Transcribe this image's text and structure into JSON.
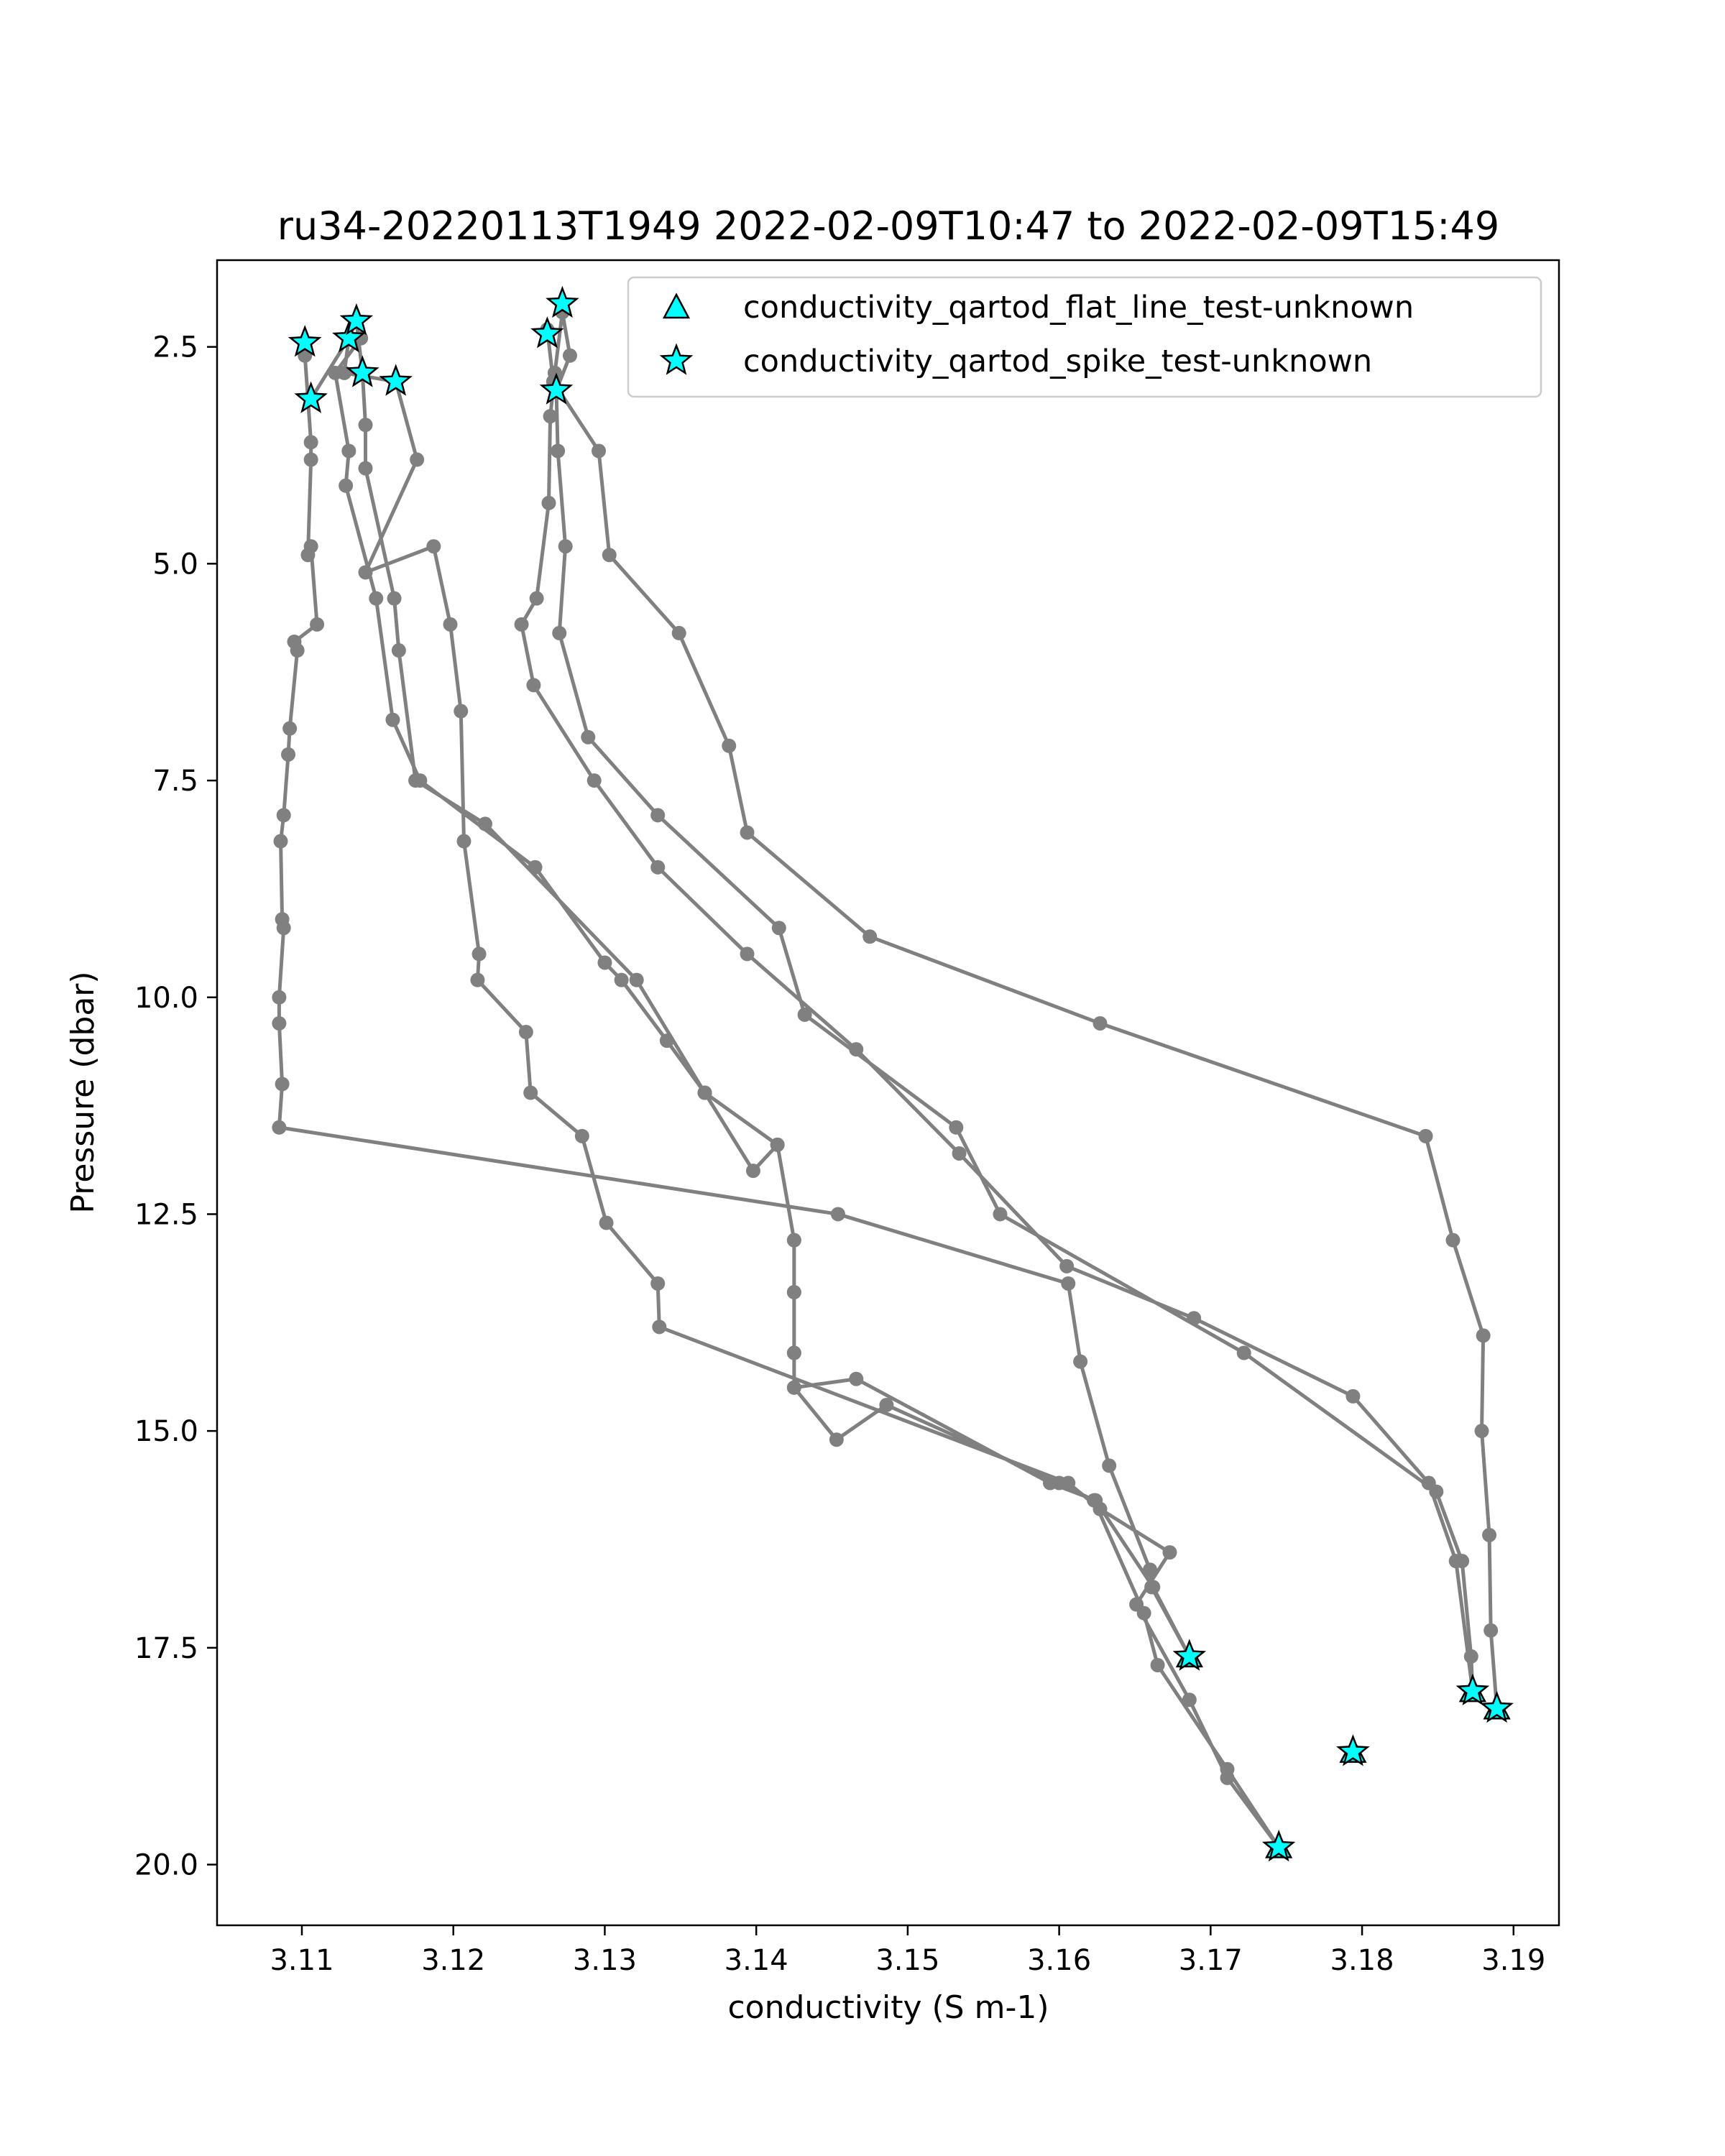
{
  "chart_data": {
    "type": "line",
    "title": "ru34-20220113T1949 2022-02-09T10:47 to 2022-02-09T15:49",
    "xlabel": "conductivity (S m-1)",
    "ylabel": "Pressure (dbar)",
    "xlim": [
      3.1044,
      3.193
    ],
    "ylim": [
      20.7,
      1.5
    ],
    "y_inverted": true,
    "x_ticks": [
      3.11,
      3.12,
      3.13,
      3.14,
      3.15,
      3.16,
      3.17,
      3.18,
      3.19
    ],
    "x_tick_labels": [
      "3.11",
      "3.12",
      "3.13",
      "3.14",
      "3.15",
      "3.16",
      "3.17",
      "3.18",
      "3.19"
    ],
    "y_ticks": [
      2.5,
      5.0,
      7.5,
      10.0,
      12.5,
      15.0,
      17.5,
      20.0
    ],
    "y_tick_labels": [
      "2.5",
      "5.0",
      "7.5",
      "10.0",
      "12.5",
      "15.0",
      "17.5",
      "20.0"
    ],
    "grid": false,
    "legend_position": "top-right",
    "line_color": "#808080",
    "flag_color": "#00ffff",
    "profile": [
      [
        3.1102,
        2.5
      ],
      [
        3.1102,
        2.6
      ],
      [
        3.1106,
        3.6
      ],
      [
        3.1106,
        3.8
      ],
      [
        3.1104,
        4.9
      ],
      [
        3.1106,
        4.8
      ],
      [
        3.111,
        5.7
      ],
      [
        3.1095,
        5.9
      ],
      [
        3.1097,
        6.0
      ],
      [
        3.1092,
        6.9
      ],
      [
        3.1091,
        7.2
      ],
      [
        3.1088,
        7.9
      ],
      [
        3.1086,
        8.2
      ],
      [
        3.1087,
        9.1
      ],
      [
        3.1088,
        9.2
      ],
      [
        3.1085,
        10.0
      ],
      [
        3.1085,
        10.3
      ],
      [
        3.1087,
        11.0
      ],
      [
        3.1085,
        11.5
      ],
      [
        3.1454,
        12.5
      ],
      [
        3.1606,
        13.3
      ],
      [
        3.1614,
        14.2
      ],
      [
        3.1633,
        15.4
      ],
      [
        3.166,
        16.6
      ],
      [
        3.1661,
        16.8
      ],
      [
        3.1686,
        17.6
      ],
      [
        3.1686,
        17.6
      ],
      [
        3.1662,
        16.8
      ],
      [
        3.1624,
        15.8
      ],
      [
        3.1594,
        15.6
      ],
      [
        3.1466,
        14.4
      ],
      [
        3.1425,
        14.5
      ],
      [
        3.1425,
        14.1
      ],
      [
        3.1425,
        13.4
      ],
      [
        3.1425,
        12.8
      ],
      [
        3.1414,
        11.7
      ],
      [
        3.1366,
        11.1
      ],
      [
        3.1321,
        9.8
      ],
      [
        3.1221,
        8.0
      ],
      [
        3.1175,
        7.5
      ],
      [
        3.1164,
        6.0
      ],
      [
        3.1161,
        5.4
      ],
      [
        3.1142,
        3.9
      ],
      [
        3.1142,
        3.4
      ],
      [
        3.114,
        2.8
      ],
      [
        3.1136,
        2.2
      ],
      [
        3.1131,
        2.4
      ],
      [
        3.1106,
        3.1
      ],
      [
        3.1131,
        2.4
      ],
      [
        3.1128,
        2.8
      ],
      [
        3.1162,
        2.9
      ],
      [
        3.1176,
        3.8
      ],
      [
        3.1142,
        5.1
      ],
      [
        3.1187,
        4.8
      ],
      [
        3.1198,
        5.7
      ],
      [
        3.1205,
        6.7
      ],
      [
        3.1207,
        8.2
      ],
      [
        3.1217,
        9.5
      ],
      [
        3.1216,
        9.8
      ],
      [
        3.1248,
        10.4
      ],
      [
        3.1251,
        11.1
      ],
      [
        3.1285,
        11.6
      ],
      [
        3.1301,
        12.6
      ],
      [
        3.1335,
        13.3
      ],
      [
        3.1336,
        13.8
      ],
      [
        3.1606,
        15.6
      ],
      [
        3.1627,
        15.9
      ],
      [
        3.1673,
        16.4
      ],
      [
        3.1651,
        17.0
      ],
      [
        3.1686,
        18.1
      ],
      [
        3.1711,
        19.0
      ],
      [
        3.1745,
        19.8
      ],
      [
        3.1745,
        19.8
      ],
      [
        3.1711,
        18.9
      ],
      [
        3.1665,
        17.7
      ],
      [
        3.1656,
        17.1
      ],
      [
        3.1623,
        15.8
      ],
      [
        3.16,
        15.6
      ],
      [
        3.1486,
        14.7
      ],
      [
        3.1453,
        15.1
      ],
      [
        3.1425,
        14.5
      ],
      [
        3.1425,
        14.1
      ],
      [
        3.1425,
        13.4
      ],
      [
        3.1425,
        12.8
      ],
      [
        3.1414,
        11.7
      ],
      [
        3.1398,
        12.0
      ],
      [
        3.1366,
        11.1
      ],
      [
        3.1341,
        10.5
      ],
      [
        3.1311,
        9.8
      ],
      [
        3.13,
        9.6
      ],
      [
        3.1254,
        8.5
      ],
      [
        3.1178,
        7.5
      ],
      [
        3.116,
        6.8
      ],
      [
        3.1149,
        5.4
      ],
      [
        3.1129,
        4.1
      ],
      [
        3.1131,
        3.7
      ],
      [
        3.1122,
        2.8
      ],
      [
        3.1139,
        2.4
      ]
    ],
    "profile2": [
      [
        3.1272,
        2.1
      ],
      [
        3.1267,
        2.8
      ],
      [
        3.1264,
        3.3
      ],
      [
        3.1263,
        4.3
      ],
      [
        3.1255,
        5.4
      ],
      [
        3.1245,
        5.7
      ],
      [
        3.1253,
        6.4
      ],
      [
        3.1293,
        7.5
      ],
      [
        3.1335,
        8.5
      ],
      [
        3.1394,
        9.5
      ],
      [
        3.1466,
        10.6
      ],
      [
        3.1534,
        11.8
      ],
      [
        3.1605,
        13.1
      ],
      [
        3.1689,
        13.7
      ],
      [
        3.1794,
        14.6
      ],
      [
        3.1844,
        15.6
      ],
      [
        3.1862,
        16.5
      ],
      [
        3.1873,
        18.0
      ],
      [
        3.1873,
        18.0
      ],
      [
        3.1872,
        17.6
      ],
      [
        3.1866,
        16.5
      ],
      [
        3.1849,
        15.7
      ],
      [
        3.1722,
        14.1
      ],
      [
        3.1561,
        12.5
      ],
      [
        3.1532,
        11.5
      ],
      [
        3.1432,
        10.2
      ],
      [
        3.1415,
        9.2
      ],
      [
        3.1335,
        7.9
      ],
      [
        3.1289,
        7.0
      ],
      [
        3.127,
        5.8
      ],
      [
        3.1274,
        4.8
      ],
      [
        3.1269,
        3.7
      ],
      [
        3.1268,
        3.0
      ],
      [
        3.1277,
        2.6
      ],
      [
        3.1272,
        2.1
      ]
    ],
    "profile3": [
      [
        3.1262,
        2.3
      ],
      [
        3.1266,
        2.9
      ],
      [
        3.1296,
        3.7
      ],
      [
        3.1303,
        4.9
      ],
      [
        3.1349,
        5.8
      ],
      [
        3.1382,
        7.1
      ],
      [
        3.1394,
        8.1
      ],
      [
        3.1475,
        9.3
      ],
      [
        3.1627,
        10.3
      ],
      [
        3.1842,
        11.6
      ],
      [
        3.186,
        12.8
      ],
      [
        3.188,
        13.9
      ],
      [
        3.1879,
        15.0
      ],
      [
        3.1884,
        16.2
      ],
      [
        3.1885,
        17.3
      ],
      [
        3.1889,
        18.2
      ],
      [
        3.1889,
        18.2
      ]
    ],
    "spike_flags": [
      [
        3.1102,
        2.45
      ],
      [
        3.1106,
        3.1
      ],
      [
        3.1131,
        2.4
      ],
      [
        3.1136,
        2.2
      ],
      [
        3.114,
        2.8
      ],
      [
        3.1162,
        2.9
      ],
      [
        3.1262,
        2.35
      ],
      [
        3.1272,
        2.0
      ],
      [
        3.1268,
        3.0
      ],
      [
        3.1686,
        17.6
      ],
      [
        3.1745,
        19.8
      ],
      [
        3.1794,
        18.7
      ],
      [
        3.1873,
        18.0
      ],
      [
        3.1889,
        18.2
      ]
    ],
    "flatline_flags": [
      [
        3.1686,
        17.6
      ],
      [
        3.1745,
        19.8
      ],
      [
        3.1794,
        18.7
      ],
      [
        3.1873,
        18.0
      ],
      [
        3.1889,
        18.2
      ]
    ],
    "legend": [
      {
        "name": "conductivity_qartod_flat_line_test-unknown",
        "marker": "triangle"
      },
      {
        "name": "conductivity_qartod_spike_test-unknown",
        "marker": "star"
      }
    ]
  }
}
